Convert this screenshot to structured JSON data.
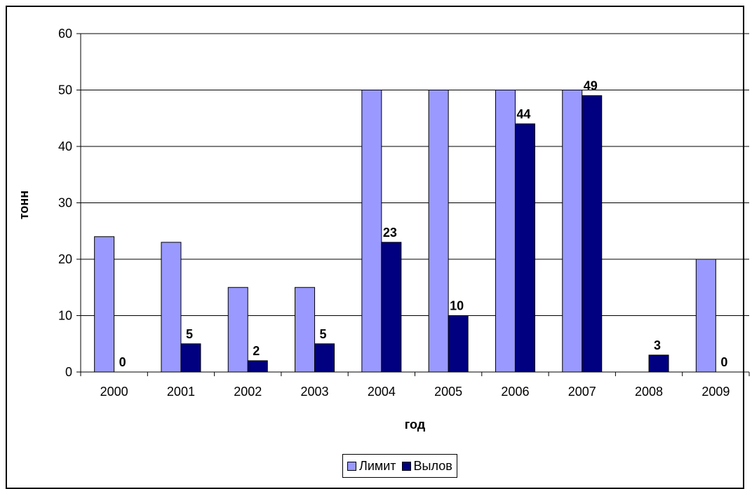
{
  "chart_data": {
    "type": "bar",
    "categories": [
      "2000",
      "2001",
      "2002",
      "2003",
      "2004",
      "2005",
      "2006",
      "2007",
      "2008",
      "2009"
    ],
    "series": [
      {
        "name": "Лимит",
        "values": [
          24,
          23,
          15,
          15,
          50,
          50,
          50,
          50,
          0,
          20
        ],
        "color": "#9999ff",
        "data_labels": false
      },
      {
        "name": "Вылов",
        "values": [
          0,
          5,
          2,
          5,
          23,
          10,
          44,
          49,
          3,
          0
        ],
        "color": "#000080",
        "data_labels": true
      }
    ],
    "xlabel": "год",
    "ylabel": "тонн",
    "ylim": [
      0,
      60
    ],
    "yticks": [
      "0",
      "10",
      "20",
      "30",
      "40",
      "50",
      "60"
    ],
    "grid": true,
    "legend": "bottom"
  }
}
